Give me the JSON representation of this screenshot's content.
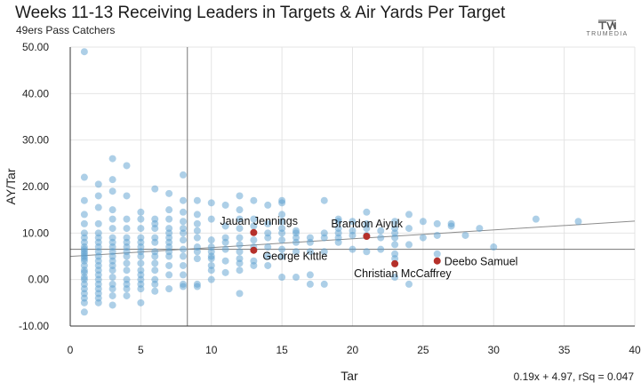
{
  "title": "Weeks 11-13 Receiving Leaders in Targets & Air Yards Per Target",
  "subtitle": "49ers Pass Catchers",
  "brand": "TRUMEDIA",
  "equation": "0.19x + 4.97, rSq = 0.047",
  "colors": {
    "dot": "#5b9fd0",
    "highlight": "#b5302a",
    "grid": "#e4e4e4",
    "line": "#8c8c8c"
  },
  "chart_data": {
    "type": "scatter",
    "title": "Weeks 11-13 Receiving Leaders in Targets & Air Yards Per Target",
    "subtitle": "49ers Pass Catchers",
    "xlabel": "Tar",
    "ylabel": "AY/Tar",
    "xlim": [
      0,
      40
    ],
    "ylim": [
      -10,
      50
    ],
    "x_ticks": [
      "0",
      "5",
      "10",
      "15",
      "20",
      "25",
      "30",
      "35",
      "40"
    ],
    "y_ticks": [
      "50.00",
      "40.00",
      "30.00",
      "20.00",
      "10.00",
      "0.00",
      "-10.00"
    ],
    "grid": true,
    "vline_x": 8.3,
    "hline_y": 6.5,
    "trendline": {
      "slope": 0.19,
      "intercept": 4.97,
      "label": "0.19x + 4.97, rSq = 0.047"
    },
    "highlighted": [
      {
        "name": "Jauan Jennings",
        "x": 13,
        "y": 10.1
      },
      {
        "name": "George Kittle",
        "x": 13,
        "y": 6.3
      },
      {
        "name": "Brandon Aiyuk",
        "x": 21,
        "y": 9.3
      },
      {
        "name": "Christian McCaffrey",
        "x": 23,
        "y": 3.4
      },
      {
        "name": "Deebo Samuel",
        "x": 26,
        "y": 4.0
      }
    ],
    "points": [
      [
        1,
        49
      ],
      [
        1,
        22
      ],
      [
        1,
        17
      ],
      [
        1,
        14
      ],
      [
        1,
        12
      ],
      [
        1,
        10
      ],
      [
        1,
        9
      ],
      [
        1,
        8
      ],
      [
        1,
        7
      ],
      [
        1,
        6.5
      ],
      [
        1,
        6
      ],
      [
        1,
        5.5
      ],
      [
        1,
        5
      ],
      [
        1,
        4.5
      ],
      [
        1,
        4
      ],
      [
        1,
        3
      ],
      [
        1,
        2
      ],
      [
        1,
        1.5
      ],
      [
        1,
        0.5
      ],
      [
        1,
        0
      ],
      [
        1,
        -1
      ],
      [
        1,
        -2
      ],
      [
        1,
        -3
      ],
      [
        1,
        -4
      ],
      [
        1,
        -5
      ],
      [
        1,
        -7
      ],
      [
        2,
        20.5
      ],
      [
        2,
        18
      ],
      [
        2,
        15.5
      ],
      [
        2,
        12
      ],
      [
        2,
        10
      ],
      [
        2,
        9
      ],
      [
        2,
        8
      ],
      [
        2,
        7
      ],
      [
        2,
        6
      ],
      [
        2,
        5
      ],
      [
        2,
        4
      ],
      [
        2,
        3
      ],
      [
        2,
        2
      ],
      [
        2,
        1
      ],
      [
        2,
        0
      ],
      [
        2,
        -1
      ],
      [
        2,
        -2
      ],
      [
        2,
        -3
      ],
      [
        2,
        -4
      ],
      [
        2,
        -5
      ],
      [
        3,
        26
      ],
      [
        3,
        21.5
      ],
      [
        3,
        19
      ],
      [
        3,
        15
      ],
      [
        3,
        13
      ],
      [
        3,
        11
      ],
      [
        3,
        9
      ],
      [
        3,
        8
      ],
      [
        3,
        7
      ],
      [
        3,
        6
      ],
      [
        3,
        5
      ],
      [
        3,
        4
      ],
      [
        3,
        3
      ],
      [
        3,
        2
      ],
      [
        3,
        0.5
      ],
      [
        3,
        -1
      ],
      [
        3,
        -2
      ],
      [
        3,
        -3.5
      ],
      [
        3,
        -5.5
      ],
      [
        4,
        24.5
      ],
      [
        4,
        18
      ],
      [
        4,
        13
      ],
      [
        4,
        11
      ],
      [
        4,
        9
      ],
      [
        4,
        8
      ],
      [
        4,
        7
      ],
      [
        4,
        6
      ],
      [
        4,
        5
      ],
      [
        4,
        3.5
      ],
      [
        4,
        2
      ],
      [
        4,
        0
      ],
      [
        4,
        -1
      ],
      [
        4,
        -2
      ],
      [
        4,
        -3.5
      ],
      [
        5,
        14.5
      ],
      [
        5,
        13
      ],
      [
        5,
        11
      ],
      [
        5,
        9
      ],
      [
        5,
        8
      ],
      [
        5,
        7
      ],
      [
        5,
        6
      ],
      [
        5,
        5
      ],
      [
        5,
        3.5
      ],
      [
        5,
        2
      ],
      [
        5,
        1
      ],
      [
        5,
        0
      ],
      [
        5,
        -1
      ],
      [
        5,
        -2
      ],
      [
        5,
        -5
      ],
      [
        6,
        19.5
      ],
      [
        6,
        13
      ],
      [
        6,
        12
      ],
      [
        6,
        11
      ],
      [
        6,
        9
      ],
      [
        6,
        8
      ],
      [
        6,
        6
      ],
      [
        6,
        5
      ],
      [
        6,
        3.5
      ],
      [
        6,
        2
      ],
      [
        6,
        0
      ],
      [
        6,
        -1
      ],
      [
        6,
        -2.5
      ],
      [
        7,
        18.5
      ],
      [
        7,
        15
      ],
      [
        7,
        13
      ],
      [
        7,
        11
      ],
      [
        7,
        10
      ],
      [
        7,
        9
      ],
      [
        7,
        8
      ],
      [
        7,
        7
      ],
      [
        7,
        6
      ],
      [
        7,
        5
      ],
      [
        7,
        3
      ],
      [
        7,
        1
      ],
      [
        7,
        -2
      ],
      [
        8,
        22.5
      ],
      [
        8,
        17
      ],
      [
        8,
        14.5
      ],
      [
        8,
        12.5
      ],
      [
        8,
        11
      ],
      [
        8,
        10
      ],
      [
        8,
        8.5
      ],
      [
        8,
        6.5
      ],
      [
        8,
        5
      ],
      [
        8,
        3
      ],
      [
        8,
        1
      ],
      [
        8,
        -1
      ],
      [
        8,
        -1.5
      ],
      [
        9,
        17
      ],
      [
        9,
        14
      ],
      [
        9,
        12
      ],
      [
        9,
        10.5
      ],
      [
        9,
        9
      ],
      [
        9,
        7
      ],
      [
        9,
        6
      ],
      [
        9,
        4.5
      ],
      [
        9,
        -1
      ],
      [
        9,
        -1.5
      ],
      [
        10,
        16.5
      ],
      [
        10,
        13
      ],
      [
        10,
        8.5
      ],
      [
        10,
        7
      ],
      [
        10,
        6
      ],
      [
        10,
        5
      ],
      [
        10,
        4.5
      ],
      [
        10,
        3
      ],
      [
        10,
        2
      ],
      [
        10,
        0
      ],
      [
        11,
        16
      ],
      [
        11,
        11.5
      ],
      [
        11,
        9
      ],
      [
        11,
        8
      ],
      [
        11,
        6.5
      ],
      [
        11,
        4
      ],
      [
        11,
        1.5
      ],
      [
        12,
        18
      ],
      [
        12,
        15
      ],
      [
        12,
        13
      ],
      [
        12,
        11
      ],
      [
        12,
        9
      ],
      [
        12,
        7.5
      ],
      [
        12,
        6
      ],
      [
        12,
        4.5
      ],
      [
        12,
        3.5
      ],
      [
        12,
        2
      ],
      [
        12,
        -3
      ],
      [
        13,
        17
      ],
      [
        13,
        13
      ],
      [
        13,
        11.5
      ],
      [
        13,
        8.5
      ],
      [
        13,
        7
      ],
      [
        13,
        4
      ],
      [
        13,
        3
      ],
      [
        14,
        16
      ],
      [
        14,
        12
      ],
      [
        14,
        10
      ],
      [
        14,
        9
      ],
      [
        14,
        7
      ],
      [
        14,
        5
      ],
      [
        14,
        3
      ],
      [
        15,
        17
      ],
      [
        15,
        16.5
      ],
      [
        15,
        14
      ],
      [
        15,
        12.5
      ],
      [
        15,
        11
      ],
      [
        15,
        10
      ],
      [
        15,
        8.5
      ],
      [
        15,
        6.5
      ],
      [
        15,
        5
      ],
      [
        15,
        0.5
      ],
      [
        16,
        10.5
      ],
      [
        16,
        10
      ],
      [
        16,
        9
      ],
      [
        16,
        8
      ],
      [
        16,
        6
      ],
      [
        16,
        0.5
      ],
      [
        17,
        9
      ],
      [
        17,
        8
      ],
      [
        17,
        6
      ],
      [
        17,
        1
      ],
      [
        17,
        -1
      ],
      [
        18,
        17
      ],
      [
        18,
        10
      ],
      [
        18,
        9
      ],
      [
        18,
        6
      ],
      [
        18,
        -1
      ],
      [
        19,
        13
      ],
      [
        19,
        12.5
      ],
      [
        19,
        11
      ],
      [
        19,
        10
      ],
      [
        19,
        9
      ],
      [
        19,
        8
      ],
      [
        20,
        12.5
      ],
      [
        20,
        10.5
      ],
      [
        20,
        9.5
      ],
      [
        20,
        6.5
      ],
      [
        21,
        14.5
      ],
      [
        21,
        12
      ],
      [
        21,
        11
      ],
      [
        21,
        9.5
      ],
      [
        21,
        6
      ],
      [
        22,
        10.5
      ],
      [
        22,
        9
      ],
      [
        22,
        6.5
      ],
      [
        23,
        12.5
      ],
      [
        23,
        11
      ],
      [
        23,
        10
      ],
      [
        23,
        9
      ],
      [
        23,
        7.5
      ],
      [
        23,
        5.5
      ],
      [
        23,
        4.5
      ],
      [
        23,
        0.5
      ],
      [
        24,
        14
      ],
      [
        24,
        11
      ],
      [
        24,
        7.5
      ],
      [
        24,
        -1
      ],
      [
        25,
        12.5
      ],
      [
        25,
        9
      ],
      [
        26,
        12
      ],
      [
        26,
        9.5
      ],
      [
        26,
        5.5
      ],
      [
        27,
        12
      ],
      [
        27,
        11.5
      ],
      [
        28,
        9.5
      ],
      [
        29,
        11
      ],
      [
        30,
        7
      ],
      [
        33,
        13
      ],
      [
        36,
        12.5
      ]
    ]
  }
}
